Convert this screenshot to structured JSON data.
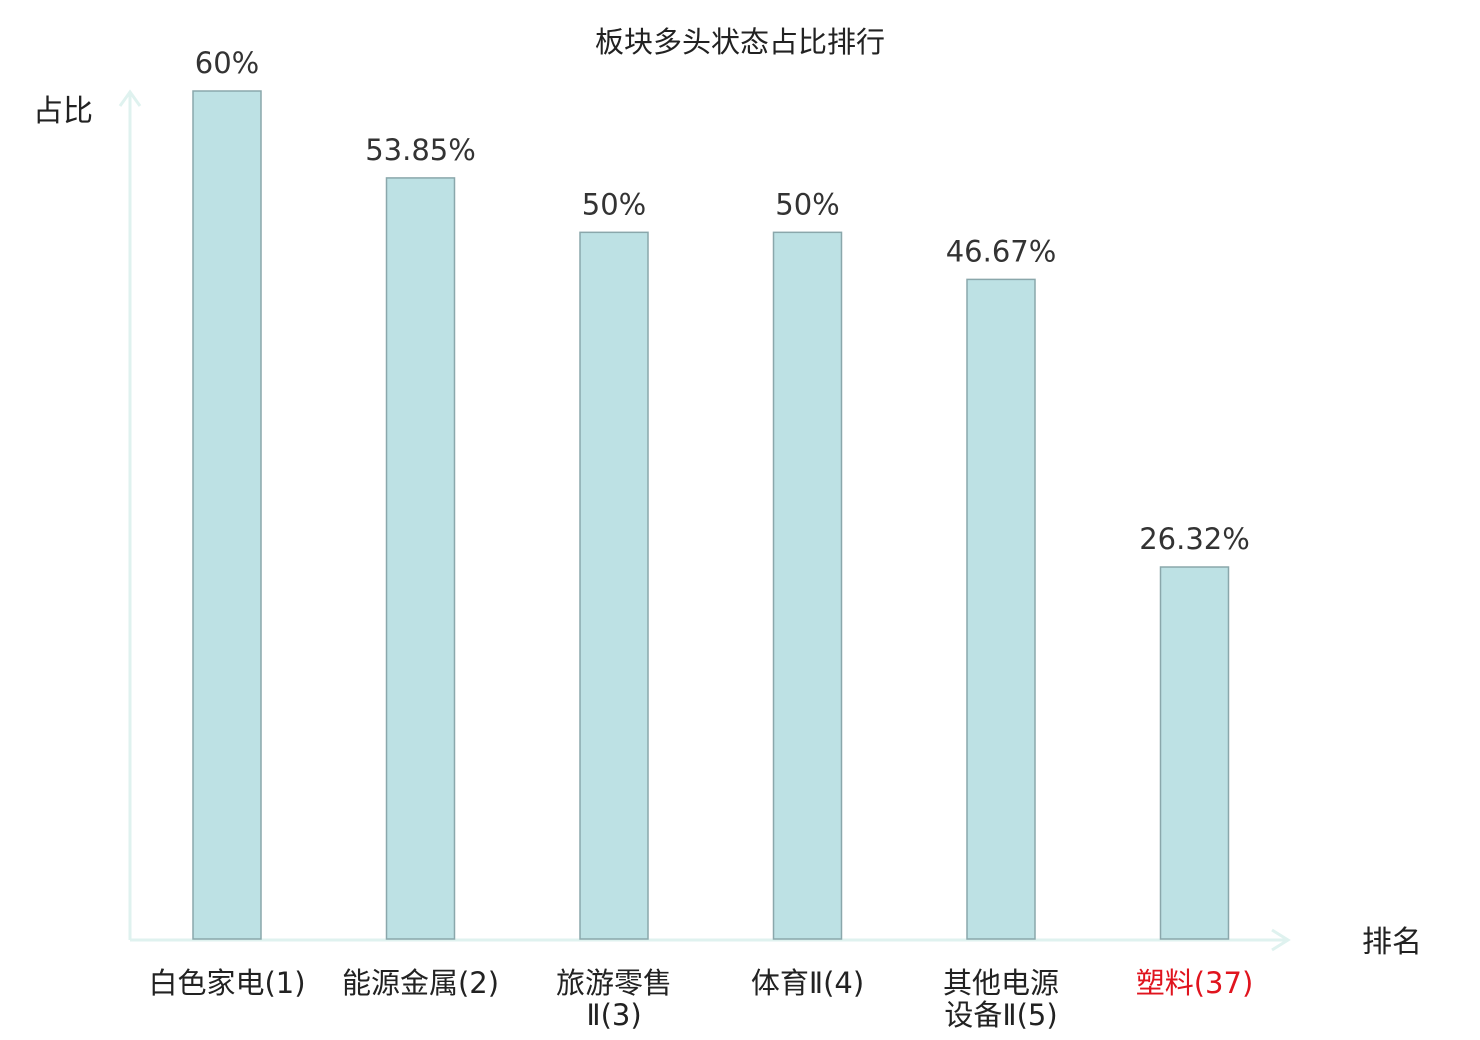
{
  "chart_data": {
    "type": "bar",
    "title": "板块多头状态占比排行",
    "ylabel": "占比",
    "xlabel": "排名",
    "categories": [
      [
        "白色家电(1)"
      ],
      [
        "能源金属(2)"
      ],
      [
        "旅游零售",
        "Ⅱ(3)"
      ],
      [
        "体育Ⅱ(4)"
      ],
      [
        "其他电源",
        "设备Ⅱ(5)"
      ],
      [
        "塑料(37)"
      ]
    ],
    "values": [
      60,
      53.85,
      50,
      50,
      46.67,
      26.32
    ],
    "value_labels": [
      "60%",
      "53.85%",
      "50%",
      "50%",
      "46.67%",
      "26.32%"
    ],
    "highlight_index": 5,
    "ylim": [
      0,
      60
    ],
    "grid": false,
    "colors": {
      "bar_fill": "#bde1e4",
      "bar_stroke": "#8aa7ab",
      "axis": "#dff2ef",
      "text": "#222222",
      "value_text": "#333333",
      "highlight_text": "#e0141e"
    }
  }
}
